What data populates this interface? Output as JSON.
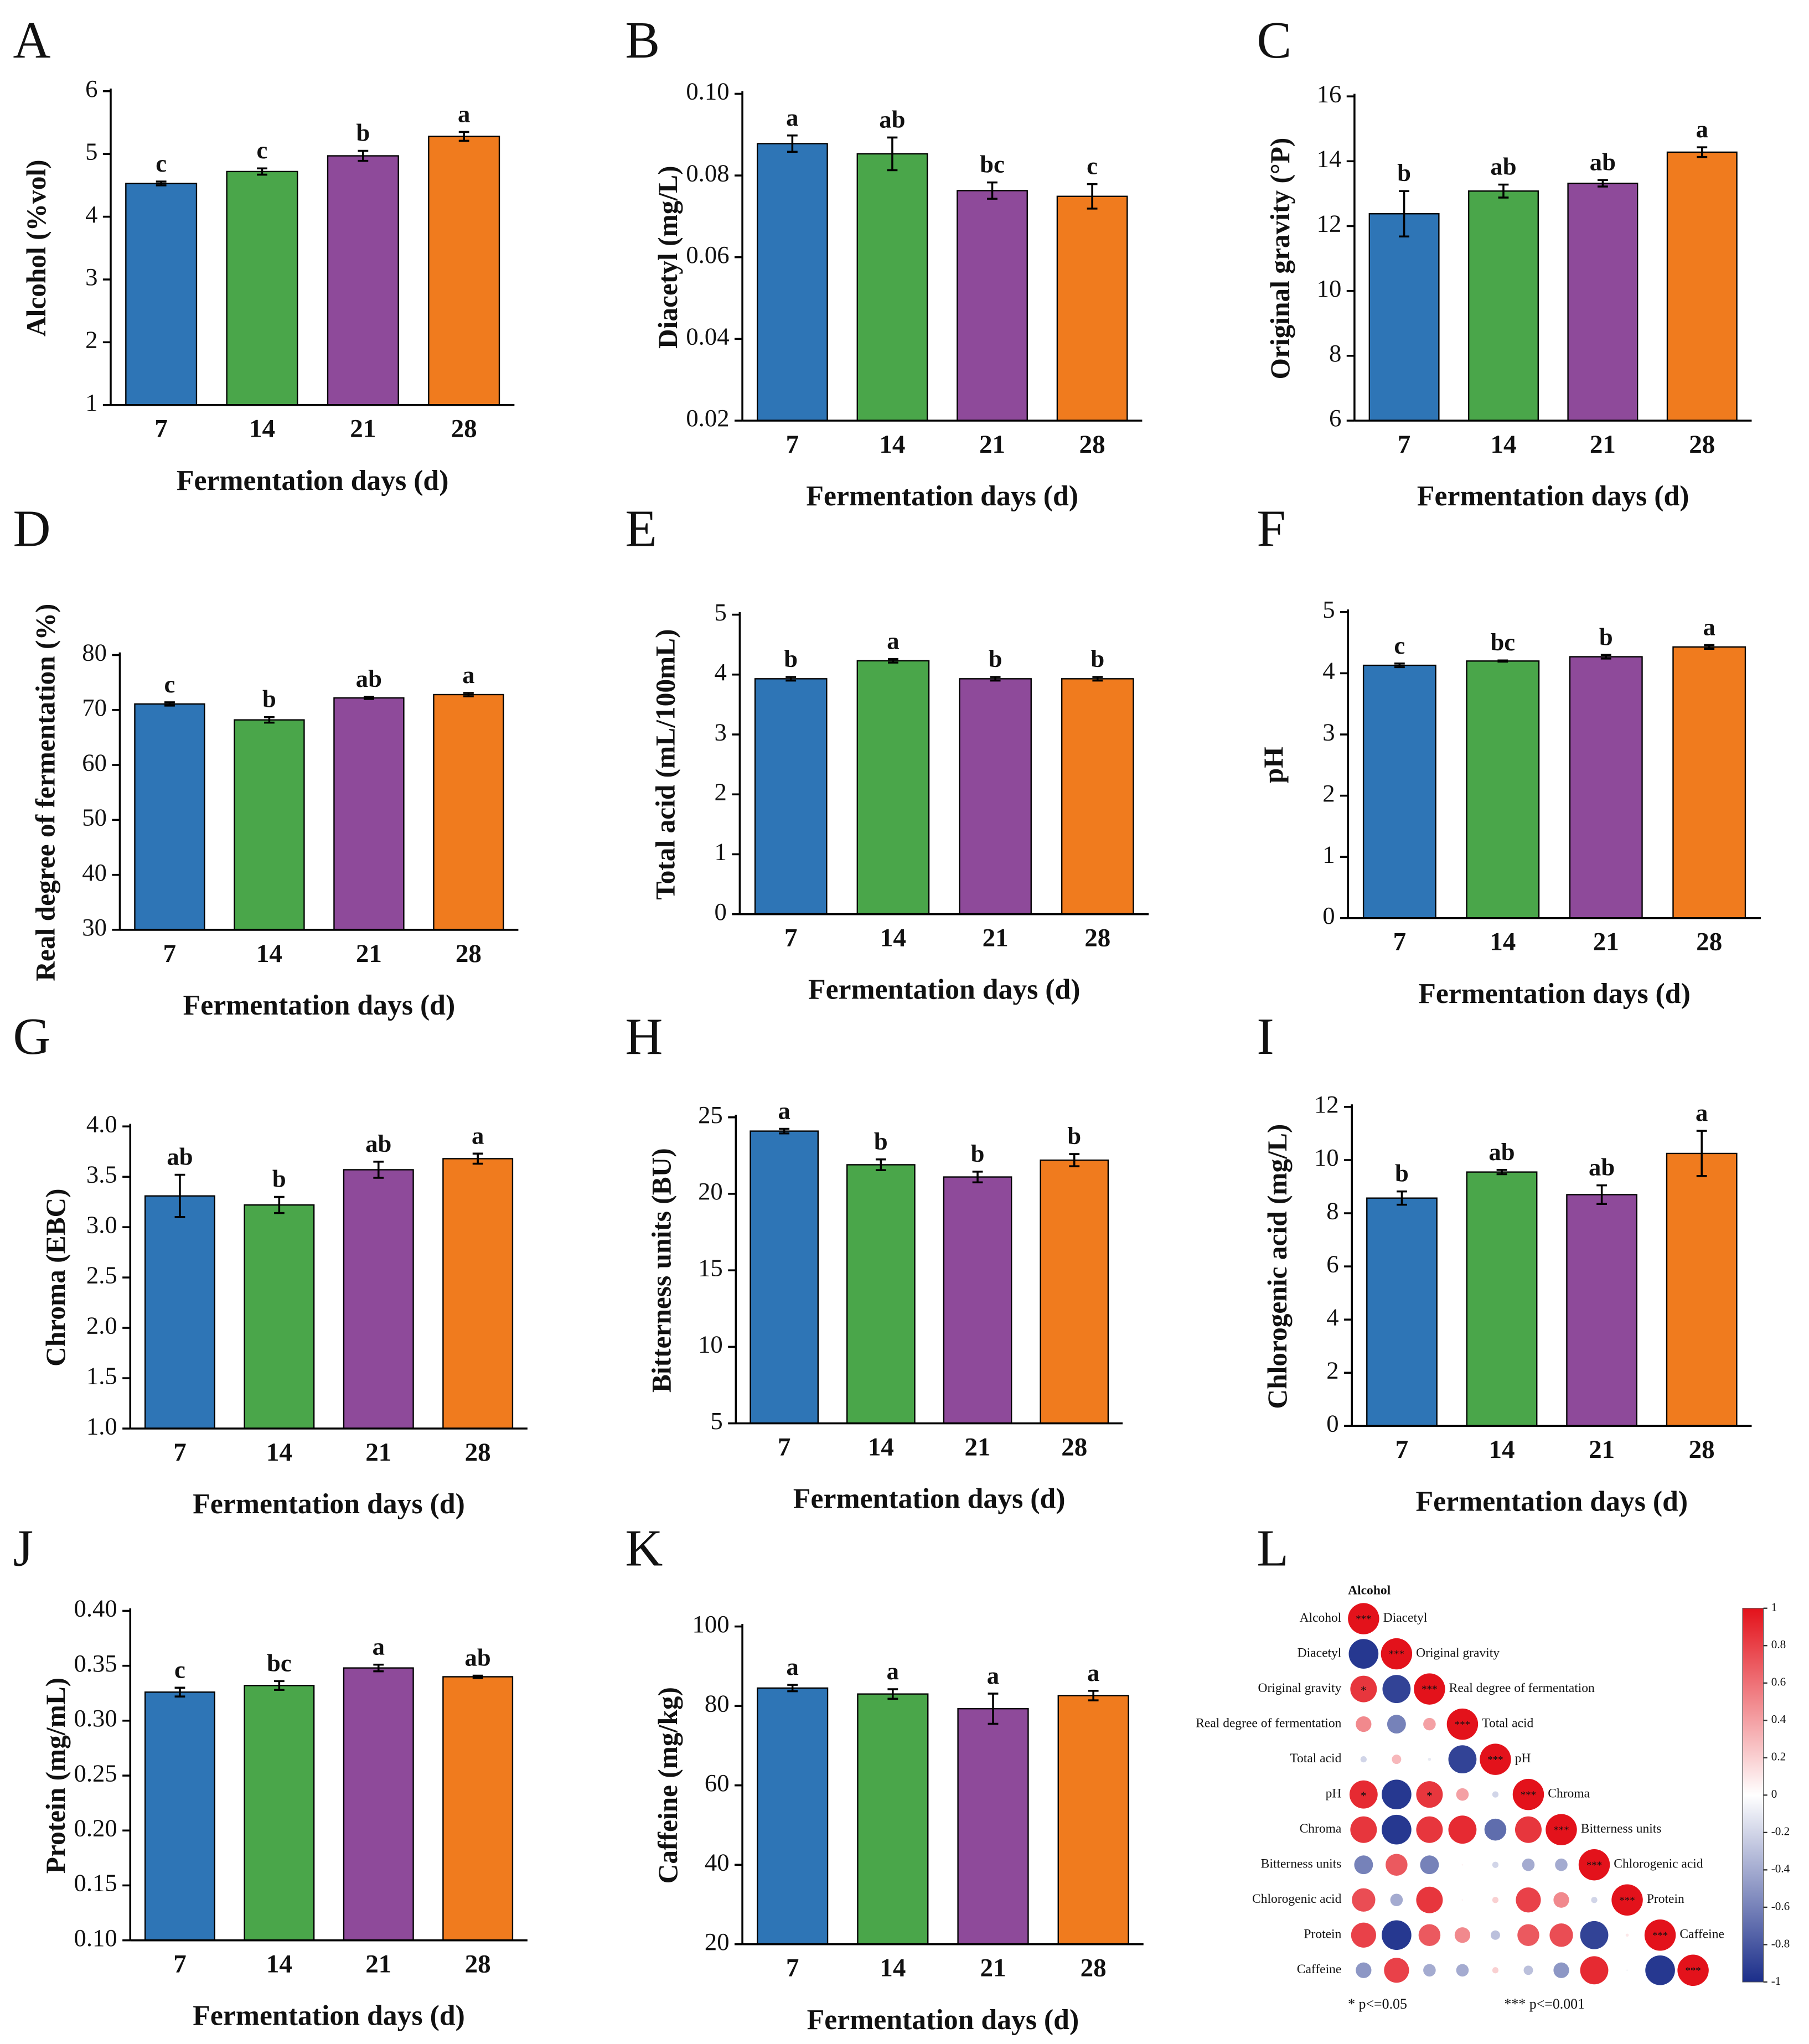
{
  "chart_data": [
    {
      "type": "bar",
      "panel": "A",
      "ylabel": "Alcohol (%vol)",
      "xlabel": "Fermentation days (d)",
      "categories": [
        "7",
        "14",
        "21",
        "28"
      ],
      "values": [
        4.53,
        4.72,
        4.97,
        5.28
      ],
      "errors": [
        0.03,
        0.05,
        0.08,
        0.07
      ],
      "labels": [
        "c",
        "c",
        "b",
        "a"
      ],
      "colors": [
        "#2e75b6",
        "#4aa64a",
        "#8e4a9a",
        "#f07b1e"
      ],
      "ylim": [
        1,
        6
      ],
      "yticks": [
        1,
        2,
        3,
        4,
        5,
        6
      ]
    },
    {
      "type": "bar",
      "panel": "B",
      "ylabel": "Diacetyl (mg/L)",
      "xlabel": "Fermentation days (d)",
      "categories": [
        "7",
        "14",
        "21",
        "28"
      ],
      "values": [
        0.0878,
        0.0853,
        0.0763,
        0.0749
      ],
      "errors": [
        0.002,
        0.004,
        0.002,
        0.003
      ],
      "labels": [
        "a",
        "ab",
        "bc",
        "c"
      ],
      "colors": [
        "#2e75b6",
        "#4aa64a",
        "#8e4a9a",
        "#f07b1e"
      ],
      "ylim": [
        0.02,
        0.1
      ],
      "yticks": [
        0.02,
        0.04,
        0.06,
        0.08,
        {
          "value": 0.1,
          "label": "0.10"
        }
      ]
    },
    {
      "type": "bar",
      "panel": "C",
      "ylabel": "Original gravity (°P)",
      "xlabel": "Fermentation days (d)",
      "categories": [
        "7",
        "14",
        "21",
        "28"
      ],
      "values": [
        12.38,
        13.08,
        13.32,
        14.28
      ],
      "errors": [
        0.7,
        0.2,
        0.1,
        0.15
      ],
      "labels": [
        "b",
        "ab",
        "ab",
        "a"
      ],
      "colors": [
        "#2e75b6",
        "#4aa64a",
        "#8e4a9a",
        "#f07b1e"
      ],
      "ylim": [
        6,
        16
      ],
      "yticks": [
        6,
        8,
        10,
        12,
        14,
        16
      ]
    },
    {
      "type": "bar",
      "panel": "D",
      "ylabel": "Real degree of fermentation (%)",
      "xlabel": "Fermentation days (d)",
      "categories": [
        "7",
        "14",
        "21",
        "28"
      ],
      "values": [
        71.1,
        68.2,
        72.2,
        72.8
      ],
      "errors": [
        0.3,
        0.5,
        0.2,
        0.3
      ],
      "labels": [
        "c",
        "b",
        "ab",
        "a"
      ],
      "colors": [
        "#2e75b6",
        "#4aa64a",
        "#8e4a9a",
        "#f07b1e"
      ],
      "ylim": [
        30,
        80
      ],
      "yticks": [
        30,
        40,
        50,
        60,
        70,
        80
      ]
    },
    {
      "type": "bar",
      "panel": "E",
      "ylabel": "Total acid (mL/100mL)",
      "xlabel": "Fermentation days (d)",
      "categories": [
        "7",
        "14",
        "21",
        "28"
      ],
      "values": [
        3.93,
        4.23,
        3.93,
        3.93
      ],
      "errors": [
        0.03,
        0.03,
        0.03,
        0.03
      ],
      "labels": [
        "b",
        "a",
        "b",
        "b"
      ],
      "colors": [
        "#2e75b6",
        "#4aa64a",
        "#8e4a9a",
        "#f07b1e"
      ],
      "ylim": [
        0,
        5
      ],
      "yticks": [
        0,
        1,
        2,
        3,
        4,
        5
      ]
    },
    {
      "type": "bar",
      "panel": "F",
      "ylabel": "pH",
      "xlabel": "Fermentation days (d)",
      "categories": [
        "7",
        "14",
        "21",
        "28"
      ],
      "values": [
        4.13,
        4.2,
        4.27,
        4.43
      ],
      "errors": [
        0.03,
        0.01,
        0.03,
        0.03
      ],
      "labels": [
        "c",
        "bc",
        "b",
        "a"
      ],
      "colors": [
        "#2e75b6",
        "#4aa64a",
        "#8e4a9a",
        "#f07b1e"
      ],
      "ylim": [
        0,
        5
      ],
      "yticks": [
        0,
        1,
        2,
        3,
        4,
        5
      ]
    },
    {
      "type": "bar",
      "panel": "G",
      "ylabel": "Chroma (EBC)",
      "xlabel": "Fermentation days (d)",
      "categories": [
        "7",
        "14",
        "21",
        "28"
      ],
      "values": [
        3.31,
        3.22,
        3.57,
        3.68
      ],
      "errors": [
        0.21,
        0.08,
        0.08,
        0.05
      ],
      "labels": [
        "ab",
        "b",
        "ab",
        "a"
      ],
      "colors": [
        "#2e75b6",
        "#4aa64a",
        "#8e4a9a",
        "#f07b1e"
      ],
      "ylim": [
        1,
        4
      ],
      "yticks": [
        {
          "value": 1,
          "label": "1.0"
        },
        1.5,
        {
          "value": 2,
          "label": "2.0"
        },
        2.5,
        {
          "value": 3,
          "label": "3.0"
        },
        3.5,
        {
          "value": 4,
          "label": "4.0"
        }
      ]
    },
    {
      "type": "bar",
      "panel": "H",
      "ylabel": "Bitterness units (BU)",
      "xlabel": "Fermentation days (d)",
      "categories": [
        "7",
        "14",
        "21",
        "28"
      ],
      "values": [
        24.1,
        21.9,
        21.1,
        22.2
      ],
      "errors": [
        0.15,
        0.35,
        0.35,
        0.4
      ],
      "labels": [
        "a",
        "b",
        "b",
        "b"
      ],
      "colors": [
        "#2e75b6",
        "#4aa64a",
        "#8e4a9a",
        "#f07b1e"
      ],
      "ylim": [
        5,
        25
      ],
      "yticks": [
        5,
        10,
        15,
        20,
        25
      ]
    },
    {
      "type": "bar",
      "panel": "I",
      "ylabel": "Chlorogenic acid (mg/L)",
      "xlabel": "Fermentation days (d)",
      "categories": [
        "7",
        "14",
        "21",
        "28"
      ],
      "values": [
        8.57,
        9.55,
        8.7,
        10.25
      ],
      "errors": [
        0.25,
        0.08,
        0.35,
        0.85
      ],
      "labels": [
        "b",
        "ab",
        "ab",
        "a"
      ],
      "colors": [
        "#2e75b6",
        "#4aa64a",
        "#8e4a9a",
        "#f07b1e"
      ],
      "ylim": [
        0,
        12
      ],
      "yticks": [
        0,
        2,
        4,
        6,
        8,
        10,
        12
      ]
    },
    {
      "type": "bar",
      "panel": "J",
      "ylabel": "Protein (mg/mL)",
      "xlabel": "Fermentation days (d)",
      "categories": [
        "7",
        "14",
        "21",
        "28"
      ],
      "values": [
        0.326,
        0.332,
        0.348,
        0.34
      ],
      "errors": [
        0.004,
        0.004,
        0.003,
        0.001
      ],
      "labels": [
        "c",
        "bc",
        "a",
        "ab"
      ],
      "colors": [
        "#2e75b6",
        "#4aa64a",
        "#8e4a9a",
        "#f07b1e"
      ],
      "ylim": [
        0.1,
        0.4
      ],
      "yticks": [
        {
          "value": 0.1,
          "label": "0.10"
        },
        0.15,
        {
          "value": 0.2,
          "label": "0.20"
        },
        0.25,
        {
          "value": 0.3,
          "label": "0.30"
        },
        0.35,
        {
          "value": 0.4,
          "label": "0.40"
        }
      ]
    },
    {
      "type": "bar",
      "panel": "K",
      "ylabel": "Caffeine (mg/kg)",
      "xlabel": "Fermentation days (d)",
      "categories": [
        "7",
        "14",
        "21",
        "28"
      ],
      "values": [
        84.5,
        83.0,
        79.3,
        82.6
      ],
      "errors": [
        0.8,
        1.2,
        3.8,
        1.2
      ],
      "labels": [
        "a",
        "a",
        "a",
        "a"
      ],
      "colors": [
        "#2e75b6",
        "#4aa64a",
        "#8e4a9a",
        "#f07b1e"
      ],
      "ylim": [
        20,
        100
      ],
      "yticks": [
        20,
        40,
        60,
        80,
        100
      ]
    },
    {
      "type": "corrplot",
      "panel": "L",
      "variables": [
        "Alcohol",
        "Diacetyl",
        "Original gravity",
        "Real degree of fermentation",
        "Total acid",
        "pH",
        "Chroma",
        "Bitterness units",
        "Chlorogenic acid",
        "Protein",
        "Caffeine"
      ],
      "matrix": [
        [
          1
        ],
        [
          -0.95,
          1
        ],
        [
          0.85,
          -0.9,
          1
        ],
        [
          0.5,
          -0.6,
          0.4,
          1
        ],
        [
          -0.2,
          0.3,
          -0.1,
          -0.9,
          1
        ],
        [
          0.9,
          -0.95,
          0.85,
          0.4,
          -0.2,
          1
        ],
        [
          0.85,
          -0.95,
          0.85,
          0.9,
          -0.7,
          0.85,
          1
        ],
        [
          -0.6,
          0.7,
          -0.6,
          0.05,
          -0.2,
          -0.4,
          -0.4,
          1
        ],
        [
          0.75,
          -0.4,
          0.85,
          0.05,
          0.2,
          0.8,
          0.5,
          -0.2,
          1
        ],
        [
          0.8,
          -0.95,
          0.7,
          0.5,
          -0.3,
          0.7,
          0.75,
          -0.9,
          0.1,
          1
        ],
        [
          -0.5,
          0.8,
          -0.4,
          -0.4,
          0.2,
          -0.3,
          -0.5,
          0.9,
          -0.05,
          -0.95,
          1
        ]
      ],
      "diag_label": "***",
      "star_label": "*",
      "star_cells": [
        [
          2,
          0
        ],
        [
          5,
          0
        ],
        [
          5,
          2
        ]
      ],
      "colors": [
        "#1b2e8a",
        "#ffffff",
        "#e3121b"
      ],
      "clim": [
        -1,
        1
      ],
      "cticks": [
        1,
        0.8,
        0.6,
        0.4,
        0.2,
        0,
        -0.2,
        -0.4,
        -0.6,
        -0.8,
        -1
      ],
      "notes": [
        "* p<=0.05",
        "*** p<=0.001"
      ]
    }
  ]
}
